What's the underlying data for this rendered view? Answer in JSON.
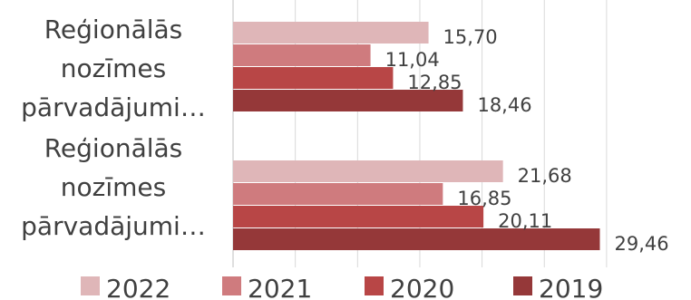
{
  "chart_data": {
    "type": "bar",
    "orientation": "horizontal",
    "categories": [
      [
        "Reģionālās",
        "nozīmes",
        "pārvadājumi…"
      ],
      [
        "Reģionālās",
        "nozīmes",
        "pārvadājumi…"
      ]
    ],
    "series": [
      {
        "name": "2022",
        "values": [
          15.7,
          21.68
        ],
        "color": "#dfb6b8"
      },
      {
        "name": "2021",
        "values": [
          11.04,
          16.85
        ],
        "color": "#cf7b7e"
      },
      {
        "name": "2020",
        "values": [
          12.85,
          20.11
        ],
        "color": "#b84646"
      },
      {
        "name": "2019",
        "values": [
          18.46,
          29.46
        ],
        "color": "#953839"
      }
    ],
    "value_labels": {
      "2022": [
        "15,70",
        "21,68"
      ],
      "2021": [
        "11,04",
        "16,85"
      ],
      "2020": [
        "12,85",
        "20,11"
      ],
      "2019": [
        "18,46",
        "29,46"
      ]
    },
    "xlim": [
      0,
      30
    ],
    "grid": true,
    "legend_position": "bottom"
  }
}
